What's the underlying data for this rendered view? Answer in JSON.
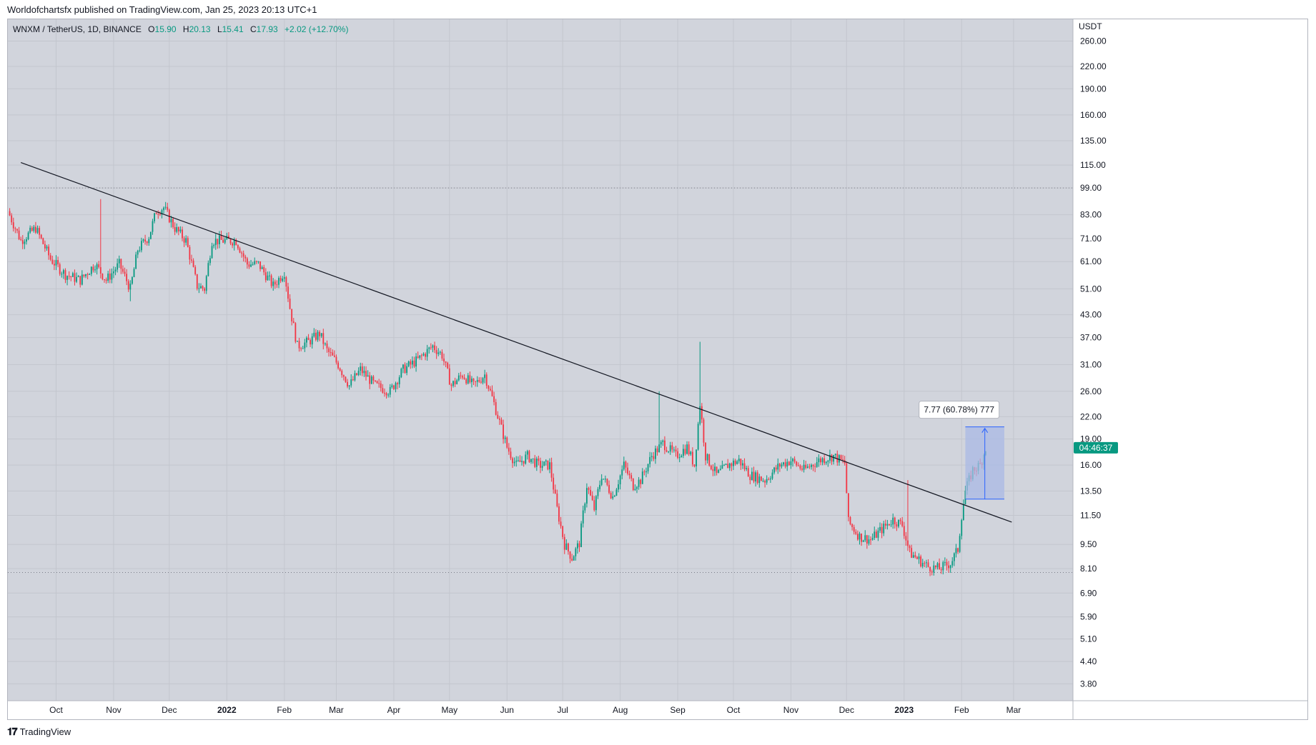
{
  "header": {
    "published": "Worldofchartsfx published on TradingView.com, Jan 25, 2023 20:13 UTC+1"
  },
  "legend": {
    "symbol": "WNXM / TetherUS, 1D, BINANCE",
    "o_label": "O",
    "o_value": "15.90",
    "h_label": "H",
    "h_value": "20.13",
    "l_label": "L",
    "l_value": "15.41",
    "c_label": "C",
    "c_value": "17.93",
    "change": "+2.02 (+12.70%)"
  },
  "footer": {
    "brand": "TradingView",
    "logo_icon": "tradingview-logo-icon"
  },
  "colors": {
    "up": "#089981",
    "down": "#f23645",
    "background": "#d1d4dc",
    "measure_fill": "#aab9e6",
    "measure_line": "#2962ff",
    "price_label_bg": "#089981"
  },
  "chart_data": {
    "type": "candlestick",
    "scale": "log",
    "currency": "USDT",
    "y_ticks": [
      "260.00",
      "220.00",
      "190.00",
      "160.00",
      "135.00",
      "115.00",
      "99.00",
      "83.00",
      "71.00",
      "61.00",
      "51.00",
      "43.00",
      "37.00",
      "31.00",
      "26.00",
      "22.00",
      "19.00",
      "16.00",
      "13.50",
      "11.50",
      "9.50",
      "8.10",
      "6.90",
      "5.90",
      "5.10",
      "4.40",
      "3.80"
    ],
    "x_ticks": [
      {
        "label": "Oct",
        "date": "2021-10-01",
        "bold": false
      },
      {
        "label": "Nov",
        "date": "2021-11-01",
        "bold": false
      },
      {
        "label": "Dec",
        "date": "2021-12-01",
        "bold": false
      },
      {
        "label": "2022",
        "date": "2022-01-01",
        "bold": true
      },
      {
        "label": "Feb",
        "date": "2022-02-01",
        "bold": false
      },
      {
        "label": "Mar",
        "date": "2022-03-01",
        "bold": false
      },
      {
        "label": "Apr",
        "date": "2022-04-01",
        "bold": false
      },
      {
        "label": "May",
        "date": "2022-05-01",
        "bold": false
      },
      {
        "label": "Jun",
        "date": "2022-06-01",
        "bold": false
      },
      {
        "label": "Jul",
        "date": "2022-07-01",
        "bold": false
      },
      {
        "label": "Aug",
        "date": "2022-08-01",
        "bold": false
      },
      {
        "label": "Sep",
        "date": "2022-09-01",
        "bold": false
      },
      {
        "label": "Oct",
        "date": "2022-10-01",
        "bold": false
      },
      {
        "label": "Nov",
        "date": "2022-11-01",
        "bold": false
      },
      {
        "label": "Dec",
        "date": "2022-12-01",
        "bold": false
      },
      {
        "label": "2023",
        "date": "2023-01-01",
        "bold": true
      },
      {
        "label": "Feb",
        "date": "2023-02-01",
        "bold": false
      },
      {
        "label": "Mar",
        "date": "2023-03-01",
        "bold": false
      }
    ],
    "price_path": [
      [
        "2021-09-05",
        85
      ],
      [
        "2021-09-12",
        70
      ],
      [
        "2021-09-20",
        76
      ],
      [
        "2021-09-28",
        62
      ],
      [
        "2021-10-06",
        56
      ],
      [
        "2021-10-14",
        54
      ],
      [
        "2021-10-22",
        60
      ],
      [
        "2021-10-28",
        54
      ],
      [
        "2021-11-04",
        60
      ],
      [
        "2021-11-10",
        51
      ],
      [
        "2021-11-14",
        66
      ],
      [
        "2021-11-20",
        72
      ],
      [
        "2021-11-24",
        85
      ],
      [
        "2021-11-28",
        87
      ],
      [
        "2021-12-04",
        76
      ],
      [
        "2021-12-10",
        70
      ],
      [
        "2021-12-16",
        52
      ],
      [
        "2021-12-20",
        51
      ],
      [
        "2021-12-24",
        70
      ],
      [
        "2021-12-31",
        70
      ],
      [
        "2022-01-06",
        70
      ],
      [
        "2022-01-12",
        60
      ],
      [
        "2022-01-18",
        60
      ],
      [
        "2022-01-26",
        52
      ],
      [
        "2022-02-01",
        57
      ],
      [
        "2022-02-04",
        45
      ],
      [
        "2022-02-08",
        35
      ],
      [
        "2022-02-14",
        36
      ],
      [
        "2022-02-20",
        38
      ],
      [
        "2022-02-24",
        34
      ],
      [
        "2022-03-02",
        31
      ],
      [
        "2022-03-08",
        27
      ],
      [
        "2022-03-14",
        30
      ],
      [
        "2022-03-22",
        27
      ],
      [
        "2022-03-30",
        26
      ],
      [
        "2022-04-06",
        30
      ],
      [
        "2022-04-14",
        32
      ],
      [
        "2022-04-22",
        35
      ],
      [
        "2022-04-27",
        33
      ],
      [
        "2022-05-02",
        27
      ],
      [
        "2022-05-08",
        29
      ],
      [
        "2022-05-14",
        27
      ],
      [
        "2022-05-20",
        29
      ],
      [
        "2022-05-25",
        24
      ],
      [
        "2022-06-01",
        18
      ],
      [
        "2022-06-06",
        16
      ],
      [
        "2022-06-12",
        17
      ],
      [
        "2022-06-18",
        16
      ],
      [
        "2022-06-24",
        16
      ],
      [
        "2022-06-28",
        12
      ],
      [
        "2022-07-02",
        9.5
      ],
      [
        "2022-07-06",
        8.7
      ],
      [
        "2022-07-10",
        9.6
      ],
      [
        "2022-07-14",
        14
      ],
      [
        "2022-07-18",
        12
      ],
      [
        "2022-07-22",
        15
      ],
      [
        "2022-07-28",
        13
      ],
      [
        "2022-08-03",
        16
      ],
      [
        "2022-08-08",
        14
      ],
      [
        "2022-08-12",
        14.5
      ],
      [
        "2022-08-18",
        17
      ],
      [
        "2022-08-24",
        18.5
      ],
      [
        "2022-08-31",
        17
      ],
      [
        "2022-09-06",
        18
      ],
      [
        "2022-09-10",
        16
      ],
      [
        "2022-09-13",
        24
      ],
      [
        "2022-09-16",
        17
      ],
      [
        "2022-09-22",
        15
      ],
      [
        "2022-09-28",
        16
      ],
      [
        "2022-10-04",
        16.5
      ],
      [
        "2022-10-10",
        15
      ],
      [
        "2022-10-18",
        14.5
      ],
      [
        "2022-10-26",
        16
      ],
      [
        "2022-11-01",
        16.5
      ],
      [
        "2022-11-08",
        15.5
      ],
      [
        "2022-11-16",
        16.5
      ],
      [
        "2022-11-24",
        17
      ],
      [
        "2022-11-30",
        16.2
      ],
      [
        "2022-12-02",
        11
      ],
      [
        "2022-12-08",
        10
      ],
      [
        "2022-12-14",
        9.8
      ],
      [
        "2022-12-20",
        10.5
      ],
      [
        "2022-12-26",
        11.2
      ],
      [
        "2022-12-31",
        10.8
      ],
      [
        "2023-01-04",
        9
      ],
      [
        "2023-01-10",
        8.5
      ],
      [
        "2023-01-14",
        8.2
      ],
      [
        "2023-01-20",
        8.1
      ],
      [
        "2023-01-26",
        8.4
      ],
      [
        "2023-01-30",
        9.2
      ],
      [
        "2023-02-01",
        11.5
      ],
      [
        "2023-02-03",
        13.5
      ],
      [
        "2023-02-07",
        15.5
      ],
      [
        "2023-02-11",
        16
      ],
      [
        "2023-02-14",
        17.93
      ]
    ],
    "spikes": [
      [
        "2021-10-25",
        92
      ],
      [
        "2021-11-10",
        47
      ],
      [
        "2022-08-22",
        26
      ],
      [
        "2022-09-13",
        36
      ],
      [
        "2023-01-03",
        14.5
      ]
    ],
    "horizontal_levels": [
      99,
      7.9
    ],
    "trendline": {
      "start": [
        "2021-09-12",
        117
      ],
      "end": [
        "2023-02-28",
        11
      ]
    },
    "measure": {
      "label": "7.77 (60.78%) 777",
      "from": [
        "2023-02-03",
        12.8
      ],
      "to": [
        "2023-02-24",
        20.57
      ]
    },
    "last_price_label": "04:46:37",
    "last_price": 17.93,
    "x_range": [
      "2021-09-05",
      "2023-04-02"
    ],
    "y_range": [
      3.4,
      300
    ]
  }
}
